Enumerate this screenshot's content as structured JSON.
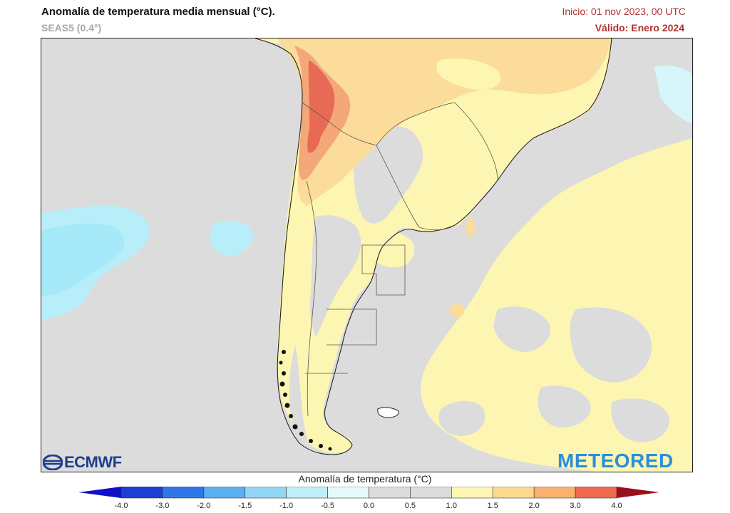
{
  "header": {
    "title": "Anomalía de temperatura media mensual (°C).",
    "model": "SEAS5 (0.4°)",
    "init": "Inicio: 01 nov 2023, 00 UTC",
    "valid": "Válido: Enero 2024"
  },
  "logos": {
    "left": "ECMWF",
    "right": "METEORED"
  },
  "colorbar": {
    "title": "Anomalía de temperatura (°C)",
    "labels": [
      "-4.0",
      "-3.0",
      "-2.0",
      "-1.5",
      "-1.0",
      "-0.5",
      "0.0",
      "0.5",
      "1.0",
      "1.5",
      "2.0",
      "3.0",
      "4.0"
    ],
    "colors": [
      "#1d3fd6",
      "#2f77e8",
      "#5bb0f2",
      "#8fd7f5",
      "#bff0fa",
      "#e6fafd",
      "#dcdcdc",
      "#dcdcdc",
      "#fdf6b2",
      "#fdd98e",
      "#f9b26b",
      "#ef6a4f",
      "#cc1f2b"
    ]
  },
  "map_colors": {
    "ocean_neutral": "#dcdcdc",
    "land_neutral": "#d4d4d4",
    "warm_light": "#fdf6b2",
    "warm_medium": "#fbdc9a",
    "warm_strong": "#f4a779",
    "warm_hot": "#e86a55",
    "cool_light": "#d6f6fb",
    "cool_medium": "#a9ecf9",
    "borders": "#222222"
  }
}
